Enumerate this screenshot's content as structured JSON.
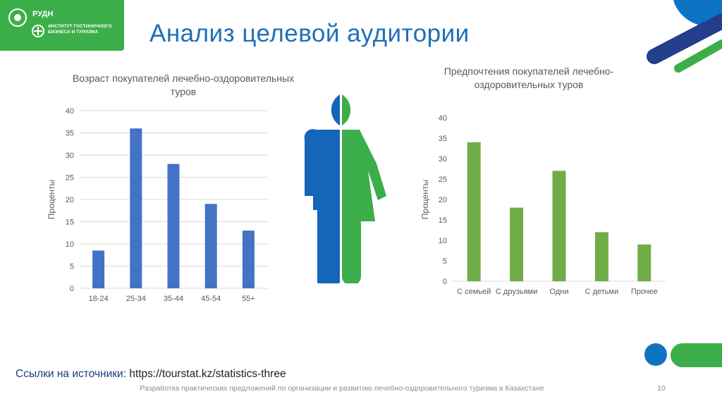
{
  "logo": {
    "brand": "РУДН",
    "institute": "ИНСТИТУТ ГОСТИНИЧНОГО БИЗНЕСА И ТУРИЗМА"
  },
  "page": {
    "title": "Анализ целевой аудитории",
    "source_label": "Ссылки на источники:",
    "source_url": "https://tourstat.kz/statistics-three",
    "footer": "Разработка практических предложений по организации и развитию лечебно-оздоровительного туризма в Казахстане",
    "page_number": "10"
  },
  "colors": {
    "blue": "#4472c4",
    "green": "#70ad47",
    "brand_green": "#3cae49",
    "brand_blue": "#1f6fb8"
  },
  "chart_data": [
    {
      "type": "bar",
      "title": "Возраст покупателей лечебно-оздоровительных туров",
      "title_lines": [
        "Возраст покупателей лечебно-оздоровительных",
        "туров"
      ],
      "ylabel": "Проценты",
      "categories": [
        "18-24",
        "25-34",
        "35-44",
        "45-54",
        "55+"
      ],
      "values": [
        8.5,
        36,
        28,
        19,
        13
      ],
      "ylim": [
        0,
        40
      ],
      "yticks": [
        0,
        5,
        10,
        15,
        20,
        25,
        30,
        35,
        40
      ],
      "grid": true,
      "color": "#4472c4"
    },
    {
      "type": "bar",
      "title": "Предпочтения покупателей лечебно-оздоровительных туров",
      "title_lines": [
        "Предпочтения покупателей лечебно-",
        "оздоровительных туров"
      ],
      "ylabel": "Проценты",
      "categories": [
        "С семьей",
        "С друзьями",
        "Одни",
        "С детьми",
        "Прочее"
      ],
      "values": [
        34,
        18,
        27,
        12,
        9
      ],
      "ylim": [
        0,
        40
      ],
      "yticks": [
        0,
        5,
        10,
        15,
        20,
        25,
        30,
        35,
        40
      ],
      "grid": false,
      "color": "#70ad47"
    }
  ]
}
